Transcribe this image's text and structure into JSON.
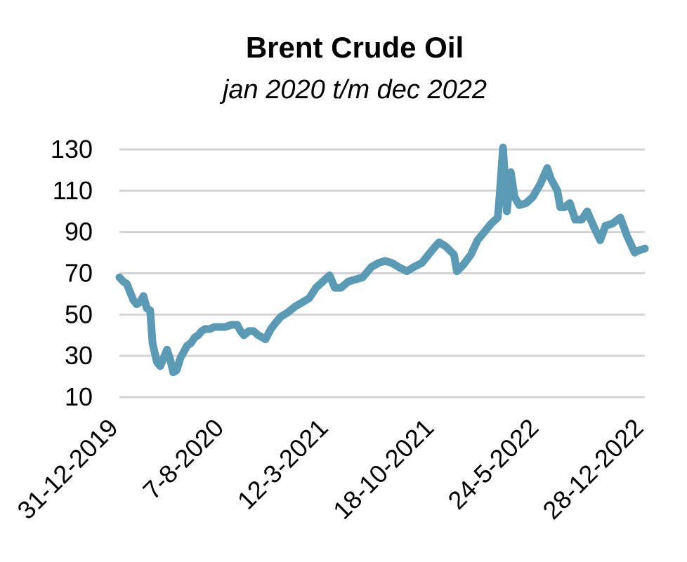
{
  "chart_data": {
    "type": "line",
    "title": "Brent Crude Oil",
    "subtitle": "jan 2020 t/m dec 2022",
    "xlabel": "",
    "ylabel": "",
    "x_range": [
      "2019-12-31",
      "2022-12-28"
    ],
    "ylim": [
      10,
      130
    ],
    "y_ticks": [
      10,
      30,
      50,
      70,
      90,
      110,
      130
    ],
    "x_tick_labels": [
      "31-12-2019",
      "7-8-2020",
      "12-3-2021",
      "18-10-2021",
      "24-5-2022",
      "28-12-2022"
    ],
    "x_tick_dates": [
      "2019-12-31",
      "2020-08-07",
      "2021-03-12",
      "2021-10-18",
      "2022-05-24",
      "2022-12-28"
    ],
    "grid": "horizontal",
    "legend": "none",
    "line_color": "#5b9ab4",
    "series": [
      {
        "x": [
          "2019-12-31",
          "2020-01-08",
          "2020-01-15",
          "2020-01-22",
          "2020-01-29",
          "2020-02-05",
          "2020-02-12",
          "2020-02-19",
          "2020-02-26",
          "2020-03-04",
          "2020-03-09",
          "2020-03-12",
          "2020-03-18",
          "2020-03-25",
          "2020-04-01",
          "2020-04-08",
          "2020-04-15",
          "2020-04-21",
          "2020-04-28",
          "2020-05-06",
          "2020-05-13",
          "2020-05-20",
          "2020-05-27",
          "2020-06-05",
          "2020-06-12",
          "2020-06-19",
          "2020-06-26",
          "2020-07-06",
          "2020-07-16",
          "2020-07-27",
          "2020-08-07",
          "2020-08-20",
          "2020-09-01",
          "2020-09-08",
          "2020-09-15",
          "2020-09-25",
          "2020-10-05",
          "2020-10-15",
          "2020-10-30",
          "2020-11-10",
          "2020-11-20",
          "2020-12-01",
          "2020-12-15",
          "2020-12-31",
          "2021-01-15",
          "2021-01-29",
          "2021-02-12",
          "2021-02-26",
          "2021-03-12",
          "2021-03-23",
          "2021-04-05",
          "2021-04-20",
          "2021-05-05",
          "2021-05-20",
          "2021-06-07",
          "2021-06-22",
          "2021-07-06",
          "2021-07-20",
          "2021-08-03",
          "2021-08-20",
          "2021-09-03",
          "2021-09-20",
          "2021-10-04",
          "2021-10-18",
          "2021-10-26",
          "2021-11-09",
          "2021-11-26",
          "2021-12-02",
          "2021-12-15",
          "2021-12-31",
          "2022-01-14",
          "2022-01-28",
          "2022-02-11",
          "2022-02-25",
          "2022-03-01",
          "2022-03-08",
          "2022-03-16",
          "2022-03-24",
          "2022-04-01",
          "2022-04-11",
          "2022-04-25",
          "2022-05-09",
          "2022-05-24",
          "2022-06-08",
          "2022-06-15",
          "2022-06-29",
          "2022-07-05",
          "2022-07-14",
          "2022-07-25",
          "2022-08-05",
          "2022-08-19",
          "2022-08-30",
          "2022-09-14",
          "2022-09-26",
          "2022-10-07",
          "2022-10-21",
          "2022-11-07",
          "2022-11-21",
          "2022-12-07",
          "2022-12-15",
          "2022-12-28"
        ],
        "values": [
          68,
          66,
          65,
          61,
          57,
          55,
          56,
          59,
          53,
          52,
          36,
          33,
          27,
          25,
          29,
          33,
          28,
          22,
          23,
          29,
          32,
          35,
          36,
          39,
          40,
          42,
          43,
          43,
          44,
          44,
          44,
          45,
          45,
          42,
          40,
          42,
          42,
          40,
          38,
          43,
          46,
          49,
          51,
          54,
          56,
          58,
          63,
          66,
          69,
          63,
          63,
          66,
          67,
          68,
          73,
          75,
          76,
          75,
          73,
          71,
          73,
          75,
          79,
          83,
          85,
          83,
          79,
          71,
          74,
          79,
          86,
          90,
          94,
          97,
          108,
          131,
          100,
          119,
          107,
          103,
          104,
          107,
          113,
          121,
          116,
          110,
          102,
          102,
          104,
          96,
          96,
          100,
          92,
          86,
          93,
          94,
          97,
          88,
          80,
          81,
          82
        ]
      }
    ]
  }
}
